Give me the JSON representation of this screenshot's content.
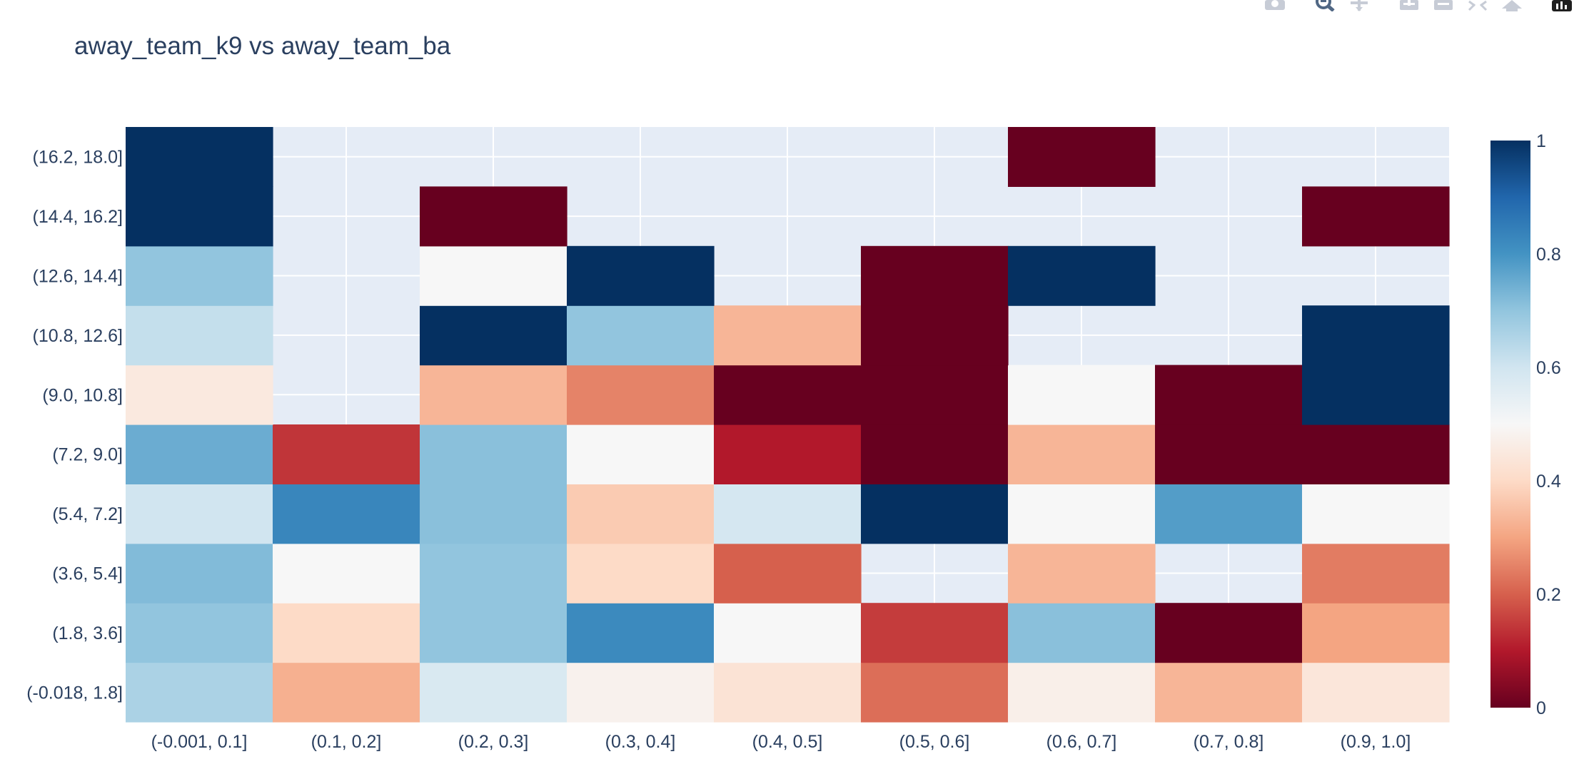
{
  "chart_data": {
    "type": "heatmap",
    "title": "away_team_k9 vs away_team_ba",
    "xlabel": "",
    "ylabel": "",
    "x_categories": [
      "(-0.001, 0.1]",
      "(0.1, 0.2]",
      "(0.2, 0.3]",
      "(0.3, 0.4]",
      "(0.4, 0.5]",
      "(0.5, 0.6]",
      "(0.6, 0.7]",
      "(0.7, 0.8]",
      "(0.9, 1.0]"
    ],
    "y_categories": [
      "(-0.018, 1.8]",
      "(1.8, 3.6]",
      "(3.6, 5.4]",
      "(5.4, 7.2]",
      "(7.2, 9.0]",
      "(9.0, 10.8]",
      "(10.8, 12.6]",
      "(12.6, 14.4]",
      "(14.4, 16.2]",
      "(16.2, 18.0]"
    ],
    "z": [
      [
        0.66,
        0.32,
        0.58,
        0.48,
        0.43,
        0.22,
        0.47,
        0.33,
        0.44
      ],
      [
        0.7,
        0.4,
        0.7,
        0.82,
        0.5,
        0.15,
        0.71,
        0.0,
        0.3
      ],
      [
        0.72,
        0.5,
        0.7,
        0.4,
        0.2,
        null,
        0.33,
        null,
        0.24
      ],
      [
        0.6,
        0.83,
        0.71,
        0.37,
        0.59,
        1.0,
        0.5,
        0.78,
        0.5
      ],
      [
        0.75,
        0.14,
        0.71,
        0.5,
        0.1,
        0.0,
        0.33,
        0.0,
        0.0
      ],
      [
        0.45,
        null,
        0.33,
        0.25,
        0.0,
        0.0,
        0.5,
        0.0,
        1.0
      ],
      [
        0.62,
        null,
        1.0,
        0.7,
        0.33,
        0.0,
        null,
        null,
        1.0
      ],
      [
        0.7,
        null,
        0.5,
        1.0,
        null,
        0.0,
        1.0,
        null,
        null
      ],
      [
        1.0,
        null,
        0.0,
        null,
        null,
        null,
        null,
        null,
        0.0
      ],
      [
        1.0,
        null,
        null,
        null,
        null,
        null,
        0.0,
        null,
        null
      ]
    ],
    "zlim": [
      0,
      1
    ],
    "colorscale": "RdBu",
    "colorbar_ticks": [
      "0",
      "0.2",
      "0.4",
      "0.6",
      "0.8",
      "1"
    ],
    "missing_color": "#e5ecf6",
    "grid": true,
    "legend": "colorbar-right"
  },
  "toolbar": {
    "icons": [
      "camera-icon",
      "zoom-icon",
      "pan-icon",
      "zoom-in-icon",
      "zoom-out-icon",
      "autoscale-icon",
      "reset-axes-icon",
      "plotly-logo-icon"
    ]
  }
}
